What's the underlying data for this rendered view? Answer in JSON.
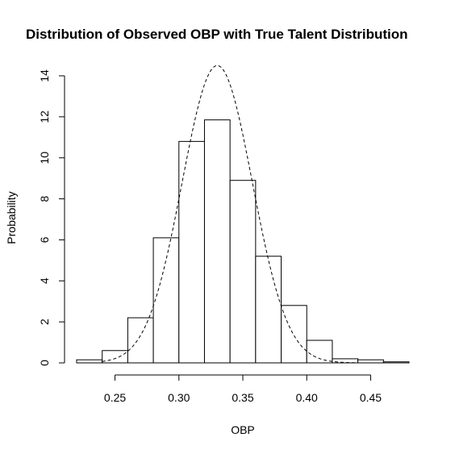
{
  "chart_data": {
    "type": "bar",
    "title": "Distribution of Observed OBP with True Talent Distribution",
    "xlabel": "OBP",
    "ylabel": "Probability",
    "xlim": [
      0.22,
      0.48
    ],
    "ylim": [
      0,
      14
    ],
    "x_ticks": [
      "0.25",
      "0.30",
      "0.35",
      "0.40",
      "0.45"
    ],
    "y_ticks": [
      "0",
      "2",
      "4",
      "6",
      "8",
      "10",
      "12",
      "14"
    ],
    "bins": [
      {
        "x0": 0.22,
        "x1": 0.24,
        "value": 0.15
      },
      {
        "x0": 0.24,
        "x1": 0.26,
        "value": 0.6
      },
      {
        "x0": 0.26,
        "x1": 0.28,
        "value": 2.2
      },
      {
        "x0": 0.28,
        "x1": 0.3,
        "value": 6.1
      },
      {
        "x0": 0.3,
        "x1": 0.32,
        "value": 10.8
      },
      {
        "x0": 0.32,
        "x1": 0.34,
        "value": 11.85
      },
      {
        "x0": 0.34,
        "x1": 0.36,
        "value": 8.9
      },
      {
        "x0": 0.36,
        "x1": 0.38,
        "value": 5.2
      },
      {
        "x0": 0.38,
        "x1": 0.4,
        "value": 2.8
      },
      {
        "x0": 0.4,
        "x1": 0.42,
        "value": 1.1
      },
      {
        "x0": 0.42,
        "x1": 0.44,
        "value": 0.2
      },
      {
        "x0": 0.44,
        "x1": 0.46,
        "value": 0.15
      },
      {
        "x0": 0.46,
        "x1": 0.48,
        "value": 0.05
      }
    ],
    "overlay_curve": {
      "style": "dashed",
      "shape": "normal",
      "mean": 0.33,
      "sd": 0.0275,
      "peak": 14.5,
      "x_range": [
        0.24,
        0.44
      ]
    },
    "grid": false,
    "legend": "none"
  }
}
